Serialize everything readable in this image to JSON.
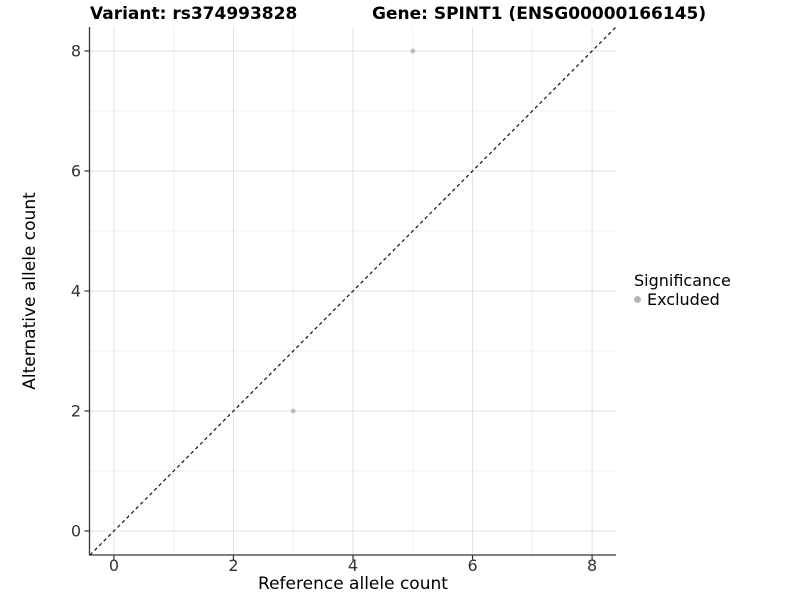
{
  "chart_data": {
    "type": "scatter",
    "titles": [
      "Variant: rs374993828",
      "Gene: SPINT1 (ENSG00000166145)"
    ],
    "xlabel": "Reference allele count",
    "ylabel": "Alternative allele count",
    "xlim": [
      -0.4,
      8.4
    ],
    "ylim": [
      -0.4,
      8.4
    ],
    "x_breaks": [
      0,
      2,
      4,
      6,
      8
    ],
    "y_breaks": [
      0,
      2,
      4,
      6,
      8
    ],
    "x_minor_breaks": [
      1,
      3,
      5,
      7
    ],
    "y_minor_breaks": [
      1,
      3,
      5,
      7
    ],
    "grid": true,
    "series": [
      {
        "name": "Excluded",
        "color": "#bcbcbc",
        "points": [
          [
            5,
            8
          ],
          [
            3,
            2
          ]
        ]
      }
    ],
    "reference_line": {
      "slope": 1,
      "intercept": 0,
      "style": "dashed",
      "color": "#111111"
    },
    "legend": {
      "title": "Significance",
      "position": "right",
      "items": [
        {
          "label": "Excluded",
          "color": "#b5b5b5"
        }
      ]
    }
  }
}
